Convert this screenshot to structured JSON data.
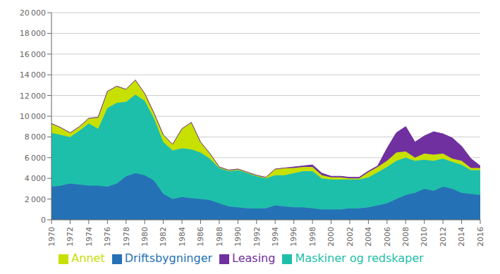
{
  "chart_data": {
    "type": "area",
    "stacked": true,
    "grid": true,
    "legend": "bottom",
    "x": [
      1970,
      1971,
      1972,
      1973,
      1974,
      1975,
      1976,
      1977,
      1978,
      1979,
      1980,
      1981,
      1982,
      1983,
      1984,
      1985,
      1986,
      1987,
      1988,
      1989,
      1990,
      1991,
      1992,
      1993,
      1994,
      1995,
      1996,
      1997,
      1998,
      1999,
      2000,
      2001,
      2002,
      2003,
      2004,
      2005,
      2006,
      2007,
      2008,
      2009,
      2010,
      2011,
      2012,
      2013,
      2014,
      2015,
      2016
    ],
    "xlim": [
      1970,
      2016
    ],
    "xticks": [
      1970,
      1972,
      1974,
      1976,
      1978,
      1980,
      1982,
      1984,
      1986,
      1988,
      1990,
      1992,
      1994,
      1996,
      1998,
      2000,
      2002,
      2004,
      2006,
      2008,
      2010,
      2012,
      2014,
      2016
    ],
    "ylim": [
      0,
      20000
    ],
    "yticks": [
      0,
      {
        "value": 2000,
        "label": "2 000"
      },
      {
        "value": 4000,
        "label": "4 000"
      },
      {
        "value": 6000,
        "label": "6 000"
      },
      {
        "value": 8000,
        "label": "8 000"
      },
      {
        "value": 10000,
        "label": "10 000"
      },
      {
        "value": 12000,
        "label": "12 000"
      },
      {
        "value": 14000,
        "label": "14 000"
      },
      {
        "value": 16000,
        "label": "16 000"
      },
      {
        "value": 18000,
        "label": "18 000"
      },
      {
        "value": 20000,
        "label": "20 000"
      }
    ],
    "series": [
      {
        "name": "Driftsbygninger",
        "color": "#2472b5",
        "values": [
          3200,
          3300,
          3500,
          3400,
          3300,
          3300,
          3200,
          3500,
          4200,
          4500,
          4300,
          3800,
          2500,
          2000,
          2200,
          2100,
          2000,
          1900,
          1600,
          1300,
          1200,
          1100,
          1100,
          1100,
          1400,
          1300,
          1200,
          1200,
          1100,
          1000,
          1000,
          1000,
          1100,
          1100,
          1200,
          1400,
          1600,
          2000,
          2400,
          2600,
          3000,
          2800,
          3200,
          3000,
          2600,
          2500,
          2400
        ]
      },
      {
        "name": "Maskiner og redskaper",
        "color": "#1ebfaa",
        "values": [
          5200,
          4900,
          4500,
          5200,
          6000,
          5500,
          7600,
          7800,
          7200,
          7600,
          7200,
          6000,
          5000,
          4700,
          4700,
          4700,
          4500,
          4000,
          3400,
          3400,
          3600,
          3400,
          3100,
          2900,
          2900,
          3000,
          3300,
          3500,
          3600,
          3000,
          2900,
          2900,
          2800,
          2800,
          2900,
          3200,
          3500,
          3700,
          3600,
          3100,
          2800,
          2900,
          2700,
          2600,
          2700,
          2300,
          2400
        ]
      },
      {
        "name": "Annet",
        "color": "#c8e000",
        "values": [
          900,
          700,
          400,
          400,
          500,
          1100,
          1600,
          1600,
          1200,
          1400,
          700,
          500,
          700,
          600,
          1900,
          2600,
          1000,
          500,
          100,
          100,
          100,
          100,
          100,
          100,
          600,
          700,
          500,
          400,
          400,
          300,
          200,
          200,
          100,
          100,
          500,
          500,
          600,
          800,
          600,
          300,
          600,
          600,
          500,
          300,
          400,
          200,
          200
        ]
      },
      {
        "name": "Leasing",
        "color": "#7030a0",
        "values": [
          0,
          0,
          0,
          0,
          0,
          0,
          0,
          0,
          0,
          0,
          0,
          0,
          0,
          0,
          0,
          0,
          0,
          0,
          0,
          0,
          0,
          0,
          0,
          0,
          0,
          0,
          100,
          100,
          200,
          200,
          100,
          100,
          100,
          100,
          100,
          100,
          1200,
          1900,
          2400,
          1500,
          1700,
          2200,
          1900,
          2000,
          1400,
          900,
          200
        ]
      }
    ]
  }
}
